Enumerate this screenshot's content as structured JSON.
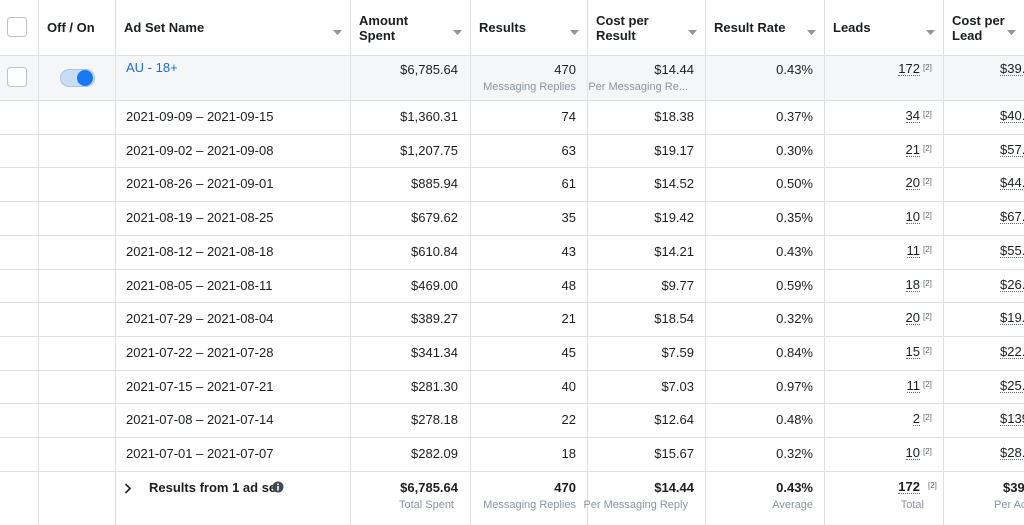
{
  "header": {
    "columns": [
      "Off / On",
      "Ad Set Name",
      "Amount Spent",
      "Results",
      "Cost per Result",
      "Result Rate",
      "Leads",
      "Cost per Lead"
    ]
  },
  "summary": {
    "name": "AU - 18+",
    "amount": "$6,785.64",
    "results": "470",
    "results_sub": "Messaging Replies",
    "cpr": "$14.44",
    "cpr_sub": "Per Messaging Re...",
    "rate": "0.43%",
    "leads": "172",
    "leads_note": "[2]",
    "cpl": "$39."
  },
  "rows": [
    {
      "name": "2021-09-09 – 2021-09-15",
      "amount": "$1,360.31",
      "results": "74",
      "cpr": "$18.38",
      "rate": "0.37%",
      "leads": "34",
      "leads_note": "[2]",
      "cpl": "$40."
    },
    {
      "name": "2021-09-02 – 2021-09-08",
      "amount": "$1,207.75",
      "results": "63",
      "cpr": "$19.17",
      "rate": "0.30%",
      "leads": "21",
      "leads_note": "[2]",
      "cpl": "$57."
    },
    {
      "name": "2021-08-26 – 2021-09-01",
      "amount": "$885.94",
      "results": "61",
      "cpr": "$14.52",
      "rate": "0.50%",
      "leads": "20",
      "leads_note": "[2]",
      "cpl": "$44."
    },
    {
      "name": "2021-08-19 – 2021-08-25",
      "amount": "$679.62",
      "results": "35",
      "cpr": "$19.42",
      "rate": "0.35%",
      "leads": "10",
      "leads_note": "[2]",
      "cpl": "$67."
    },
    {
      "name": "2021-08-12 – 2021-08-18",
      "amount": "$610.84",
      "results": "43",
      "cpr": "$14.21",
      "rate": "0.43%",
      "leads": "11",
      "leads_note": "[2]",
      "cpl": "$55."
    },
    {
      "name": "2021-08-05 – 2021-08-11",
      "amount": "$469.00",
      "results": "48",
      "cpr": "$9.77",
      "rate": "0.59%",
      "leads": "18",
      "leads_note": "[2]",
      "cpl": "$26."
    },
    {
      "name": "2021-07-29 – 2021-08-04",
      "amount": "$389.27",
      "results": "21",
      "cpr": "$18.54",
      "rate": "0.32%",
      "leads": "20",
      "leads_note": "[2]",
      "cpl": "$19."
    },
    {
      "name": "2021-07-22 – 2021-07-28",
      "amount": "$341.34",
      "results": "45",
      "cpr": "$7.59",
      "rate": "0.84%",
      "leads": "15",
      "leads_note": "[2]",
      "cpl": "$22."
    },
    {
      "name": "2021-07-15 – 2021-07-21",
      "amount": "$281.30",
      "results": "40",
      "cpr": "$7.03",
      "rate": "0.97%",
      "leads": "11",
      "leads_note": "[2]",
      "cpl": "$25."
    },
    {
      "name": "2021-07-08 – 2021-07-14",
      "amount": "$278.18",
      "results": "22",
      "cpr": "$12.64",
      "rate": "0.48%",
      "leads": "2",
      "leads_note": "[2]",
      "cpl": "$139."
    },
    {
      "name": "2021-07-01 – 2021-07-07",
      "amount": "$282.09",
      "results": "18",
      "cpr": "$15.67",
      "rate": "0.32%",
      "leads": "10",
      "leads_note": "[2]",
      "cpl": "$28."
    }
  ],
  "footer": {
    "label": "Results from 1 ad set",
    "amount": "$6,785.64",
    "amount_sub": "Total Spent",
    "results": "470",
    "results_sub": "Messaging Replies",
    "cpr": "$14.44",
    "cpr_sub": "Per Messaging Reply",
    "rate": "0.43%",
    "rate_sub": "Average",
    "leads": "172",
    "leads_note": "[2]",
    "leads_sub": "Total",
    "cpl": "$39",
    "cpl_sub": "Per Ac"
  }
}
